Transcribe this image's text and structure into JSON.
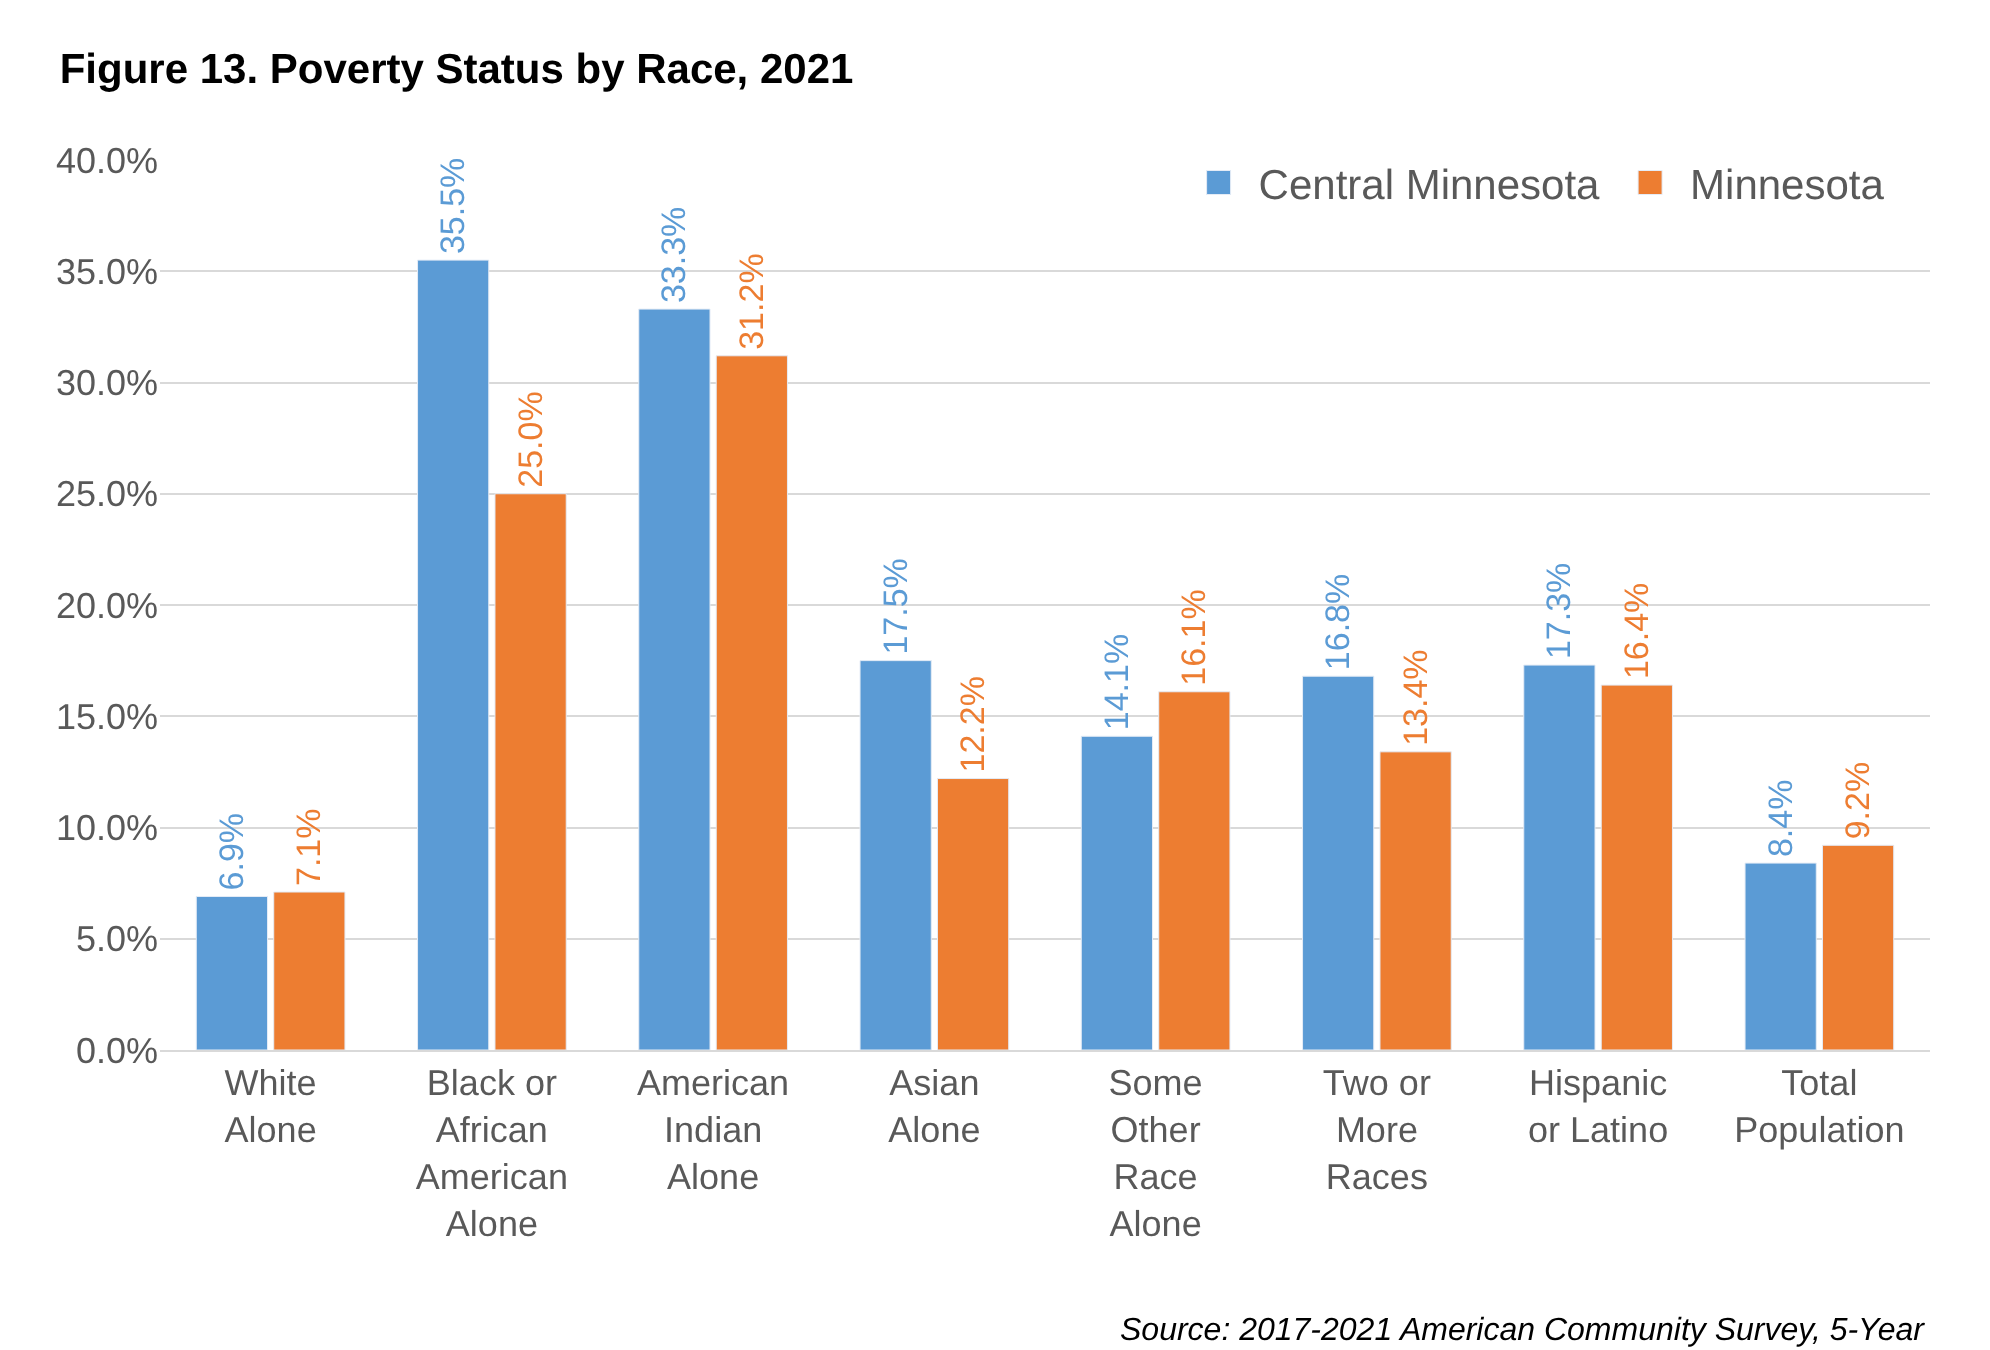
{
  "chart_data": {
    "type": "bar",
    "title": "Figure 13. Poverty Status by Race, 2021",
    "categories": [
      "White Alone",
      "Black or African American Alone",
      "American Indian Alone",
      "Asian Alone",
      "Some Other Race Alone",
      "Two or More Races",
      "Hispanic or Latino",
      "Total Population"
    ],
    "series": [
      {
        "name": "Central Minnesota",
        "color": "#5b9bd5",
        "values": [
          6.9,
          35.5,
          33.3,
          17.5,
          14.1,
          16.8,
          17.3,
          8.4
        ],
        "value_labels": [
          "6.9%",
          "35.5%",
          "33.3%",
          "17.5%",
          "14.1%",
          "16.8%",
          "17.3%",
          "8.4%"
        ]
      },
      {
        "name": "Minnesota",
        "color": "#ed7d31",
        "values": [
          7.1,
          25.0,
          31.2,
          12.2,
          16.1,
          13.4,
          16.4,
          9.2
        ],
        "value_labels": [
          "7.1%",
          "25.0%",
          "31.2%",
          "12.2%",
          "16.1%",
          "13.4%",
          "16.4%",
          "9.2%"
        ]
      }
    ],
    "ylim": [
      0,
      40
    ],
    "yticks": [
      {
        "value": 0,
        "label": "0.0%"
      },
      {
        "value": 5,
        "label": "5.0%"
      },
      {
        "value": 10,
        "label": "10.0%"
      },
      {
        "value": 15,
        "label": "15.0%"
      },
      {
        "value": 20,
        "label": "20.0%"
      },
      {
        "value": 25,
        "label": "25.0%"
      },
      {
        "value": 30,
        "label": "30.0%"
      },
      {
        "value": 35,
        "label": "35.0%"
      },
      {
        "value": 40,
        "label": "40.0%"
      }
    ],
    "grid": "y",
    "legend": "top right",
    "annotations": [
      "Source: 2017-2021 American Community Survey, 5-Year"
    ]
  }
}
